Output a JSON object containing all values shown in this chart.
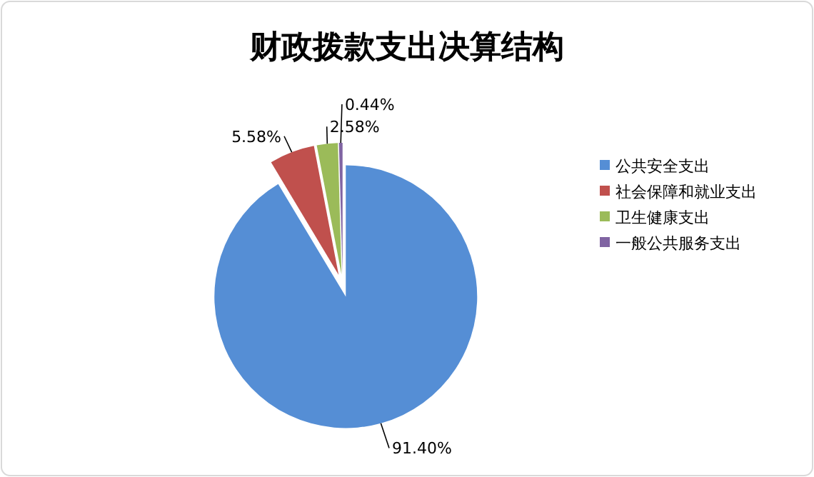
{
  "chart_data": {
    "type": "pie",
    "title": "财政拨款支出决算结构",
    "categories": [
      "公共安全支出",
      "社会保障和就业支出",
      "卫生健康支出",
      "一般公共服务支出"
    ],
    "values": [
      91.4,
      5.58,
      2.58,
      0.44
    ],
    "value_labels": [
      "91.40%",
      "5.58%",
      "2.58%",
      "0.44%"
    ],
    "colors": [
      "#558ed5",
      "#c0504d",
      "#9bbb59",
      "#8064a2"
    ],
    "legend": "right"
  }
}
